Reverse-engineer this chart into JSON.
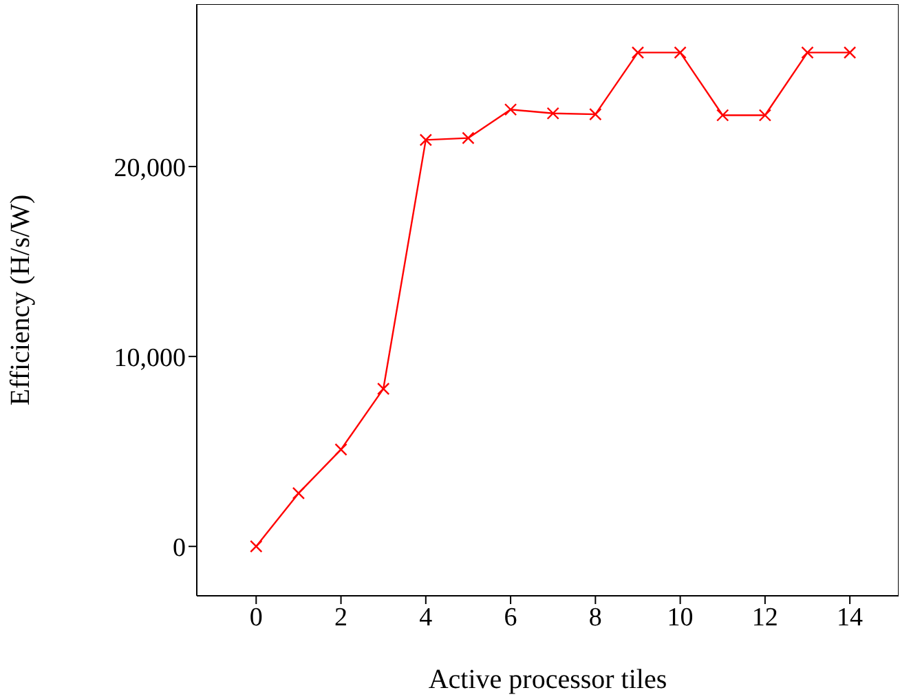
{
  "chart_data": {
    "type": "line",
    "xlabel": "Active processor tiles",
    "ylabel": "Efficiency (H/s/W)",
    "x": [
      0,
      1,
      2,
      3,
      4,
      5,
      6,
      7,
      8,
      9,
      10,
      11,
      12,
      13,
      14
    ],
    "series": [
      {
        "color": "#ff0000",
        "values": [
          0,
          2800,
          5100,
          8300,
          21400,
          21500,
          23000,
          22800,
          22750,
          26000,
          26000,
          22700,
          22700,
          26000,
          26000
        ]
      }
    ],
    "xlim": [
      -1.4,
      15.15
    ],
    "xticks": [
      0,
      2,
      4,
      6,
      8,
      10,
      12,
      14
    ],
    "ylim": [
      -2600,
      28550
    ],
    "yticks": [
      0,
      {
        "value": 10000,
        "label": "10,000"
      },
      {
        "value": 20000,
        "label": "20,000"
      }
    ],
    "marker": "cross",
    "line_style": "solid",
    "grid": false,
    "legend": false
  }
}
